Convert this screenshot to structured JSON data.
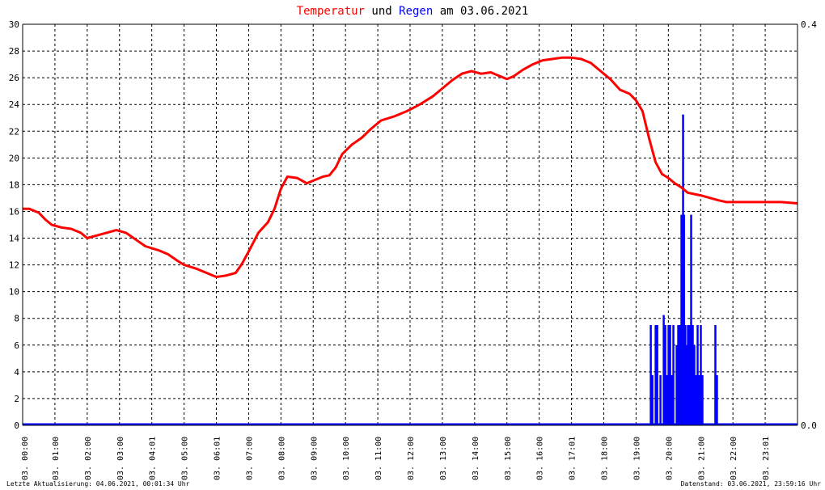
{
  "header": {
    "title_part1": "Temperatur",
    "title_part2": " und ",
    "title_part3": "Regen",
    "title_part4": " am 03.06.2021"
  },
  "footer": {
    "left": "Letzte Aktualisierung: 04.06.2021, 00:01:34 Uhr",
    "right": "Datenstand: 03.06.2021, 23:59:16 Uhr"
  },
  "colors": {
    "temperature": "#ff0000",
    "rain": "#0000ff",
    "grid": "#000000",
    "axis": "#000000",
    "background": "#ffffff"
  },
  "chart_data": {
    "type": "line",
    "grid": true,
    "x_ticks": [
      "03. 00:00",
      "03. 01:00",
      "03. 02:00",
      "03. 03:00",
      "03. 04:01",
      "03. 05:00",
      "03. 06:01",
      "03. 07:00",
      "03. 08:00",
      "03. 09:00",
      "03. 10:00",
      "03. 11:00",
      "03. 12:00",
      "03. 13:00",
      "03. 14:00",
      "03. 15:00",
      "03. 16:00",
      "03. 17:01",
      "03. 18:00",
      "03. 19:00",
      "03. 20:00",
      "03. 21:00",
      "03. 22:00",
      "03. 23:01"
    ],
    "xlim": [
      0,
      24
    ],
    "left_axis": {
      "ylim": [
        0,
        30
      ],
      "ticks": [
        0,
        2,
        4,
        6,
        8,
        10,
        12,
        14,
        16,
        18,
        20,
        22,
        24,
        26,
        28,
        30
      ]
    },
    "right_axis": {
      "ylim": [
        0,
        0.4
      ],
      "ticks": [
        "0.0",
        "0.4"
      ]
    },
    "series": [
      {
        "name": "Temperatur",
        "axis": "left",
        "x": [
          0,
          0.2,
          0.5,
          0.7,
          0.9,
          1.2,
          1.5,
          1.8,
          2.0,
          2.3,
          2.6,
          2.9,
          3.2,
          3.5,
          3.8,
          4.2,
          4.5,
          4.8,
          5.0,
          5.4,
          5.8,
          6.0,
          6.3,
          6.6,
          6.8,
          7.0,
          7.3,
          7.6,
          7.8,
          8.0,
          8.2,
          8.5,
          8.8,
          9.0,
          9.3,
          9.5,
          9.7,
          9.9,
          10.2,
          10.5,
          10.8,
          11.1,
          11.5,
          11.9,
          12.3,
          12.7,
          13.0,
          13.3,
          13.6,
          13.9,
          14.2,
          14.5,
          14.8,
          15.0,
          15.2,
          15.5,
          15.8,
          16.1,
          16.4,
          16.7,
          17.0,
          17.3,
          17.6,
          17.9,
          18.2,
          18.5,
          18.8,
          19.0,
          19.2,
          19.4,
          19.6,
          19.8,
          20.0,
          20.2,
          20.4,
          20.6,
          20.8,
          21.0,
          21.3,
          21.6,
          21.8,
          22.0,
          22.5,
          23.0,
          23.5,
          24.0
        ],
        "values": [
          16.2,
          16.2,
          15.9,
          15.4,
          15.0,
          14.8,
          14.7,
          14.4,
          14.0,
          14.2,
          14.4,
          14.6,
          14.4,
          13.9,
          13.4,
          13.1,
          12.8,
          12.3,
          12.0,
          11.7,
          11.3,
          11.1,
          11.2,
          11.4,
          12.1,
          13.0,
          14.4,
          15.2,
          16.2,
          17.7,
          18.6,
          18.5,
          18.1,
          18.3,
          18.6,
          18.7,
          19.3,
          20.3,
          21.0,
          21.5,
          22.2,
          22.8,
          23.1,
          23.5,
          24.0,
          24.6,
          25.2,
          25.8,
          26.3,
          26.5,
          26.3,
          26.4,
          26.1,
          25.9,
          26.1,
          26.6,
          27.0,
          27.3,
          27.4,
          27.5,
          27.5,
          27.4,
          27.1,
          26.5,
          25.9,
          25.1,
          24.8,
          24.3,
          23.5,
          21.5,
          19.7,
          18.8,
          18.5,
          18.1,
          17.8,
          17.4,
          17.3,
          17.2,
          17.0,
          16.8,
          16.7,
          16.7,
          16.7,
          16.7,
          16.7,
          16.6
        ]
      },
      {
        "name": "Regen",
        "axis": "right",
        "type": "bar",
        "x": [
          19.45,
          19.5,
          19.6,
          19.65,
          19.75,
          19.85,
          19.9,
          19.95,
          20.0,
          20.05,
          20.1,
          20.15,
          20.25,
          20.3,
          20.35,
          20.4,
          20.45,
          20.48,
          20.52,
          20.56,
          20.6,
          20.65,
          20.7,
          20.75,
          20.8,
          20.85,
          20.9,
          20.95,
          21.0,
          21.05,
          21.45,
          21.5
        ],
        "values": [
          0.1,
          0.05,
          0.1,
          0.1,
          0.05,
          0.11,
          0.1,
          0.05,
          0.1,
          0.1,
          0.05,
          0.1,
          0.08,
          0.1,
          0.1,
          0.21,
          0.31,
          0.21,
          0.1,
          0.08,
          0.1,
          0.1,
          0.21,
          0.1,
          0.08,
          0.05,
          0.1,
          0.05,
          0.1,
          0.05,
          0.1,
          0.05
        ]
      }
    ]
  }
}
